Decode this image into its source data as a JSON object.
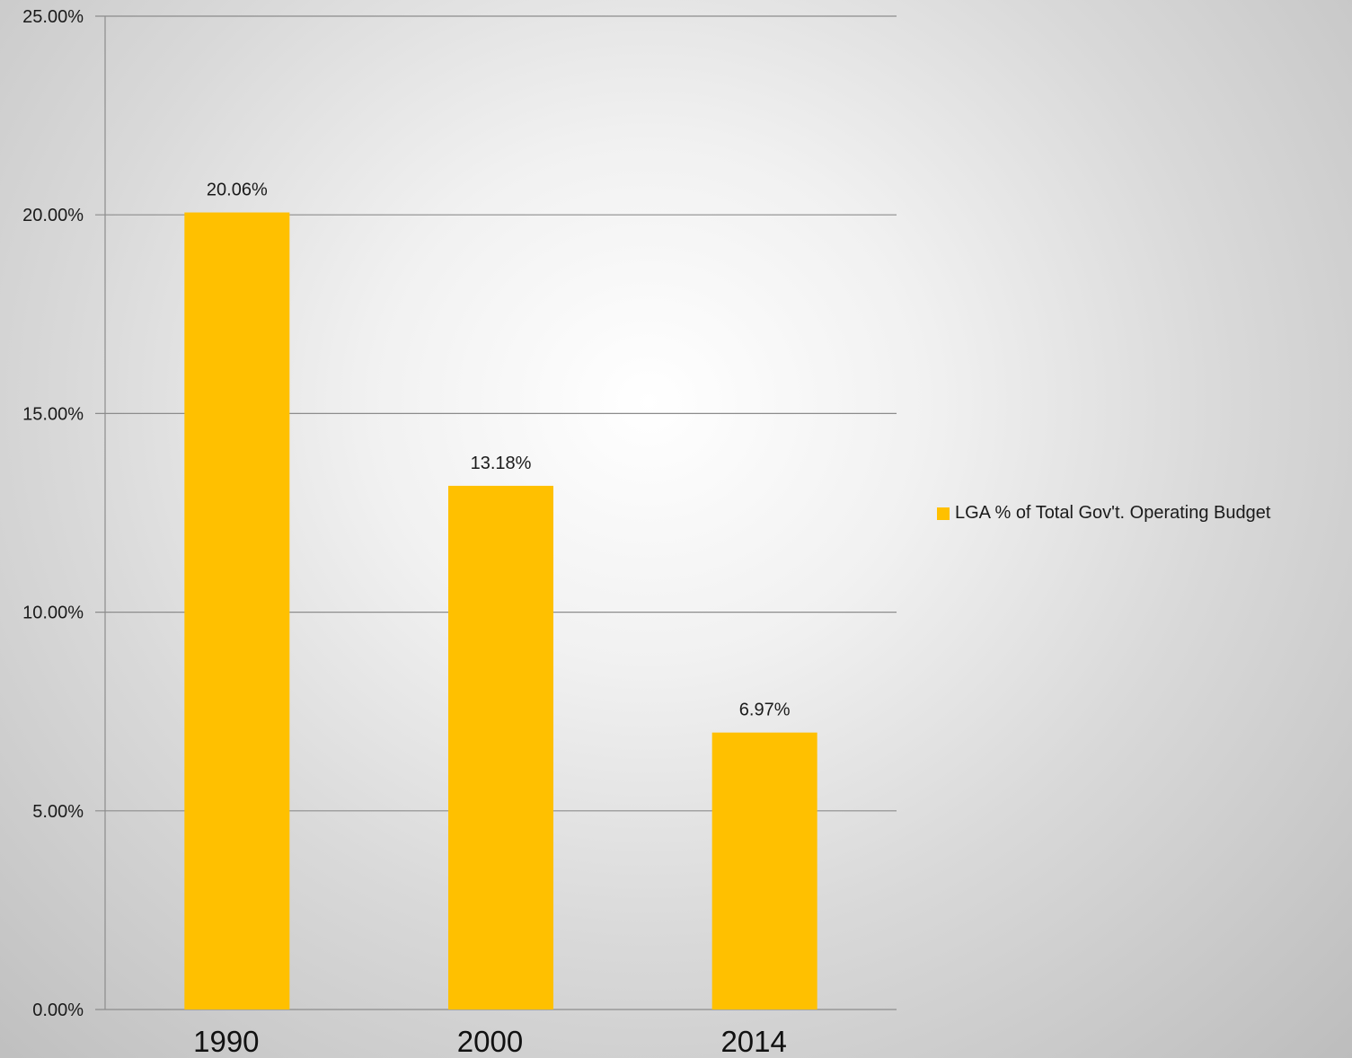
{
  "chart_data": {
    "type": "bar",
    "categories": [
      "1990",
      "2000",
      "2014"
    ],
    "series": [
      {
        "name": "LGA % of Total Gov't. Operating Budget",
        "values": [
          20.06,
          13.18,
          6.97
        ],
        "color": "#FFC000"
      }
    ],
    "data_labels": [
      "20.06%",
      "13.18%",
      "6.97%"
    ],
    "y_ticks": [
      0,
      5,
      10,
      15,
      20,
      25
    ],
    "y_tick_labels": [
      "0.00%",
      "5.00%",
      "10.00%",
      "15.00%",
      "20.00%",
      "25.00%"
    ],
    "ylim": [
      0,
      25
    ],
    "grid": true,
    "legend_position": "right",
    "gridline_color": "#8c8c8c",
    "axis_color": "#8c8c8c"
  }
}
